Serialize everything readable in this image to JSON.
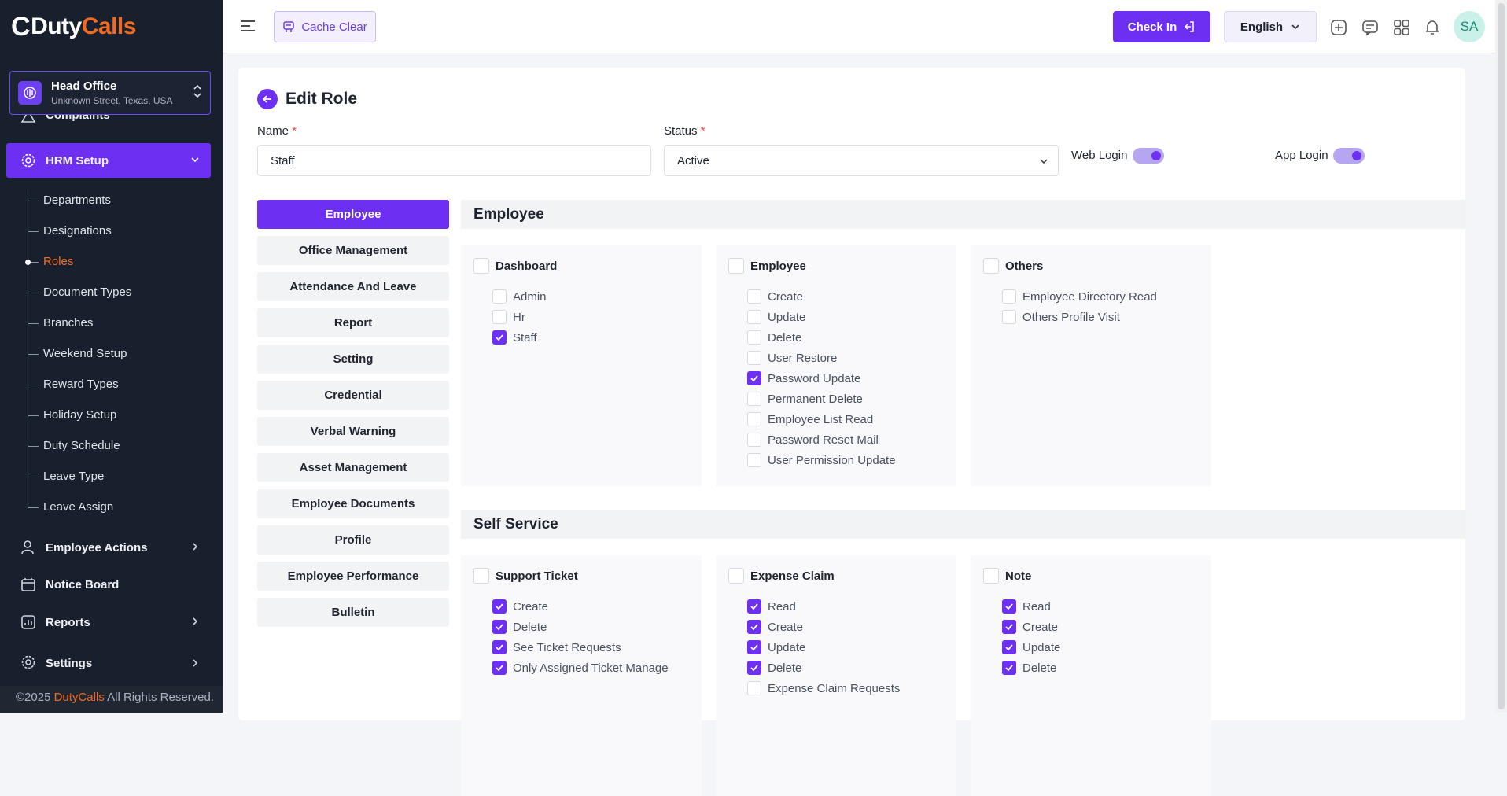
{
  "brand": {
    "c": "C",
    "duty": "Duty",
    "calls": "Calls"
  },
  "branch": {
    "name": "Head Office",
    "address": "Unknown Street, Texas, USA"
  },
  "sidebar": {
    "partial_item": "Complaints",
    "active_item": "HRM Setup",
    "sub_items": [
      {
        "label": "Departments",
        "active": false
      },
      {
        "label": "Designations",
        "active": false
      },
      {
        "label": "Roles",
        "active": true
      },
      {
        "label": "Document Types",
        "active": false
      },
      {
        "label": "Branches",
        "active": false
      },
      {
        "label": "Weekend Setup",
        "active": false
      },
      {
        "label": "Reward Types",
        "active": false
      },
      {
        "label": "Holiday Setup",
        "active": false
      },
      {
        "label": "Duty Schedule",
        "active": false
      },
      {
        "label": "Leave Type",
        "active": false
      },
      {
        "label": "Leave Assign",
        "active": false
      }
    ],
    "employee_actions": "Employee Actions",
    "notice_board": "Notice Board",
    "reports": "Reports",
    "settings": "Settings"
  },
  "footer": {
    "prefix": "©2025 ",
    "brand": "DutyCalls",
    "suffix": " All Rights Reserved."
  },
  "topbar": {
    "cache_clear": "Cache Clear",
    "check_in": "Check In",
    "language": "English",
    "avatar": "SA"
  },
  "form": {
    "title": "Edit Role",
    "name_label": "Name",
    "name_value": "Staff",
    "status_label": "Status",
    "status_value": "Active",
    "required_mark": "*",
    "web_login": "Web Login",
    "app_login": "App Login",
    "web_login_on": true,
    "app_login_on": true
  },
  "tabs": [
    "Employee",
    "Office Management",
    "Attendance And Leave",
    "Report",
    "Setting",
    "Credential",
    "Verbal Warning",
    "Asset Management",
    "Employee Documents",
    "Profile",
    "Employee Performance",
    "Bulletin"
  ],
  "active_tab": "Employee",
  "sections": [
    {
      "title": "Employee",
      "groups": [
        {
          "title": "Dashboard",
          "checked": false,
          "items": [
            {
              "label": "Admin",
              "checked": false
            },
            {
              "label": "Hr",
              "checked": false
            },
            {
              "label": "Staff",
              "checked": true
            }
          ]
        },
        {
          "title": "Employee",
          "checked": false,
          "items": [
            {
              "label": "Create",
              "checked": false
            },
            {
              "label": "Update",
              "checked": false
            },
            {
              "label": "Delete",
              "checked": false
            },
            {
              "label": "User Restore",
              "checked": false
            },
            {
              "label": "Password Update",
              "checked": true
            },
            {
              "label": "Permanent Delete",
              "checked": false
            },
            {
              "label": "Employee List Read",
              "checked": false
            },
            {
              "label": "Password Reset Mail",
              "checked": false
            },
            {
              "label": "User Permission Update",
              "checked": false
            }
          ]
        },
        {
          "title": "Others",
          "checked": false,
          "items": [
            {
              "label": "Employee Directory Read",
              "checked": false
            },
            {
              "label": "Others Profile Visit",
              "checked": false
            }
          ]
        }
      ]
    },
    {
      "title": "Self Service",
      "groups": [
        {
          "title": "Support Ticket",
          "checked": false,
          "items": [
            {
              "label": "Create",
              "checked": true
            },
            {
              "label": "Delete",
              "checked": true
            },
            {
              "label": "See Ticket Requests",
              "checked": true
            },
            {
              "label": "Only Assigned Ticket Manage",
              "checked": true
            }
          ]
        },
        {
          "title": "Expense Claim",
          "checked": false,
          "items": [
            {
              "label": "Read",
              "checked": true
            },
            {
              "label": "Create",
              "checked": true
            },
            {
              "label": "Update",
              "checked": true
            },
            {
              "label": "Delete",
              "checked": true
            },
            {
              "label": "Expense Claim Requests",
              "checked": false
            }
          ]
        },
        {
          "title": "Note",
          "checked": false,
          "items": [
            {
              "label": "Read",
              "checked": true
            },
            {
              "label": "Create",
              "checked": true
            },
            {
              "label": "Update",
              "checked": true
            },
            {
              "label": "Delete",
              "checked": true
            }
          ]
        }
      ]
    }
  ],
  "colors": {
    "accent": "#6d2ff2",
    "brand_orange": "#f26a21",
    "sidebar_bg": "#17202c"
  }
}
